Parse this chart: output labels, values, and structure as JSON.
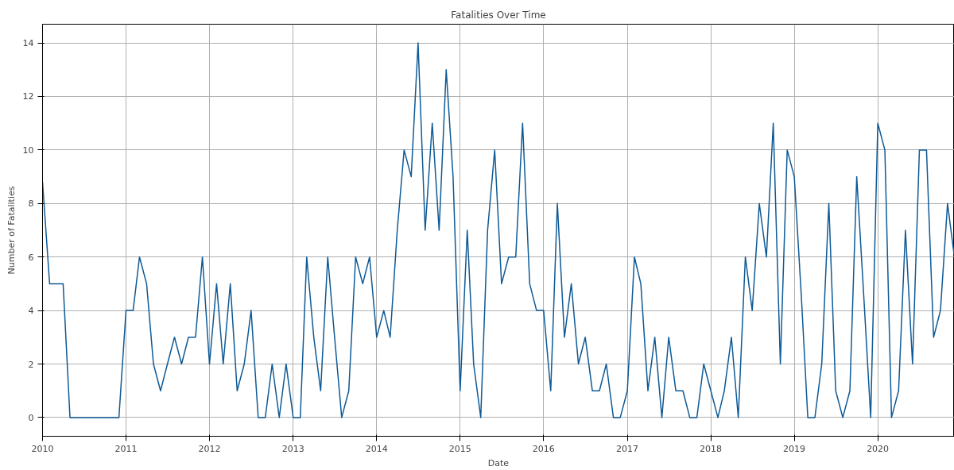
{
  "chart_data": {
    "type": "line",
    "title": "Fatalities Over Time",
    "xlabel": "Date",
    "ylabel": "Number of Fatalities",
    "x": [
      "2010-01",
      "2010-02",
      "2010-03",
      "2010-04",
      "2010-05",
      "2010-06",
      "2010-07",
      "2010-08",
      "2010-09",
      "2010-10",
      "2010-11",
      "2010-12",
      "2011-01",
      "2011-02",
      "2011-03",
      "2011-04",
      "2011-05",
      "2011-06",
      "2011-07",
      "2011-08",
      "2011-09",
      "2011-10",
      "2011-11",
      "2011-12",
      "2012-01",
      "2012-02",
      "2012-03",
      "2012-04",
      "2012-05",
      "2012-06",
      "2012-07",
      "2012-08",
      "2012-09",
      "2012-10",
      "2012-11",
      "2012-12",
      "2013-01",
      "2013-02",
      "2013-03",
      "2013-04",
      "2013-05",
      "2013-06",
      "2013-07",
      "2013-08",
      "2013-09",
      "2013-10",
      "2013-11",
      "2013-12",
      "2014-01",
      "2014-02",
      "2014-03",
      "2014-04",
      "2014-05",
      "2014-06",
      "2014-07",
      "2014-08",
      "2014-09",
      "2014-10",
      "2014-11",
      "2014-12",
      "2015-01",
      "2015-02",
      "2015-03",
      "2015-04",
      "2015-05",
      "2015-06",
      "2015-07",
      "2015-08",
      "2015-09",
      "2015-10",
      "2015-11",
      "2015-12",
      "2016-01",
      "2016-02",
      "2016-03",
      "2016-04",
      "2016-05",
      "2016-06",
      "2016-07",
      "2016-08",
      "2016-09",
      "2016-10",
      "2016-11",
      "2016-12",
      "2017-01",
      "2017-02",
      "2017-03",
      "2017-04",
      "2017-05",
      "2017-06",
      "2017-07",
      "2017-08",
      "2017-09",
      "2017-10",
      "2017-11",
      "2017-12",
      "2018-01",
      "2018-02",
      "2018-03",
      "2018-04",
      "2018-05",
      "2018-06",
      "2018-07",
      "2018-08",
      "2018-09",
      "2018-10",
      "2018-11",
      "2018-12",
      "2019-01",
      "2019-02",
      "2019-03",
      "2019-04",
      "2019-05",
      "2019-06",
      "2019-07",
      "2019-08",
      "2019-09",
      "2019-10",
      "2019-11",
      "2019-12",
      "2020-01",
      "2020-02",
      "2020-03",
      "2020-04",
      "2020-05",
      "2020-06",
      "2020-07",
      "2020-08",
      "2020-09",
      "2020-10",
      "2020-11",
      "2020-12"
    ],
    "series": [
      {
        "color": "#0e5a96",
        "values": [
          8.8,
          5,
          5,
          5,
          0,
          0,
          0,
          0,
          0,
          0,
          0,
          0,
          4,
          4,
          6,
          5,
          2,
          1,
          2,
          3,
          2,
          3,
          3,
          6,
          2,
          5,
          2,
          5,
          1,
          2,
          4,
          0,
          0,
          2,
          0,
          2,
          0,
          0,
          6,
          3,
          1,
          6,
          3,
          0,
          1,
          6,
          5,
          6,
          3,
          4,
          3,
          7,
          10,
          9,
          14,
          7,
          11,
          7,
          13,
          9,
          1,
          7,
          2,
          0,
          7,
          10,
          5,
          6,
          6,
          11,
          5,
          4,
          4,
          1,
          8,
          3,
          5,
          2,
          3,
          1,
          1,
          2,
          0,
          0,
          1,
          6,
          5,
          1,
          3,
          0,
          3,
          1,
          1,
          0,
          0,
          2,
          1,
          0,
          1,
          3,
          0,
          6,
          4,
          8,
          6,
          11,
          2,
          10,
          9,
          4.5,
          0,
          0,
          2,
          8,
          1,
          0,
          1,
          9,
          4.5,
          0,
          11,
          10,
          0,
          1,
          7,
          2,
          10,
          10,
          3,
          4,
          8,
          6
        ]
      }
    ],
    "xlim": [
      "2010-01",
      "2020-12"
    ],
    "xticks": [
      {
        "value": "2010-01",
        "label": "2010"
      },
      {
        "value": "2011-01",
        "label": "2011"
      },
      {
        "value": "2012-01",
        "label": "2012"
      },
      {
        "value": "2013-01",
        "label": "2013"
      },
      {
        "value": "2014-01",
        "label": "2014"
      },
      {
        "value": "2015-01",
        "label": "2015"
      },
      {
        "value": "2016-01",
        "label": "2016"
      },
      {
        "value": "2017-01",
        "label": "2017"
      },
      {
        "value": "2018-01",
        "label": "2018"
      },
      {
        "value": "2019-01",
        "label": "2019"
      },
      {
        "value": "2020-01",
        "label": "2020"
      }
    ],
    "ylim": [
      -0.7,
      14.7
    ],
    "yticks": [
      0,
      2,
      4,
      6,
      8,
      10,
      12,
      14
    ],
    "grid": true,
    "line_style": "solid",
    "marker": "none"
  }
}
